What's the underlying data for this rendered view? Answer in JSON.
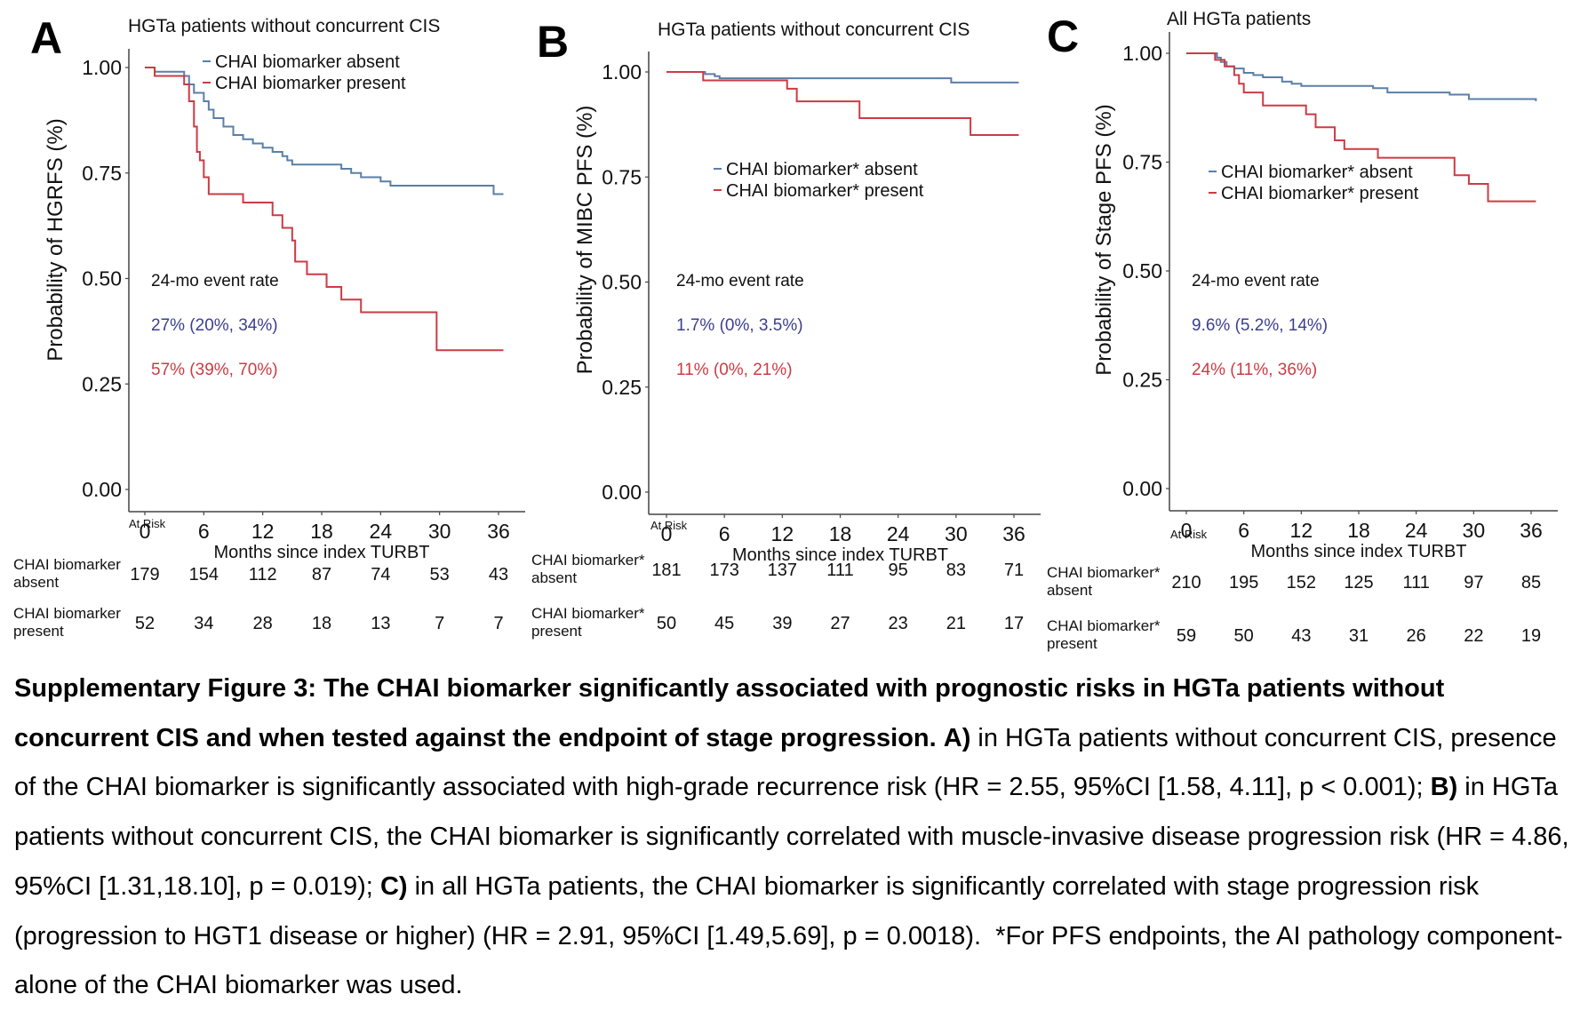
{
  "chart_data": [
    {
      "type": "line",
      "panel_letter": "A",
      "title": "HGTa patients without concurrent CIS",
      "xlabel": "Months since index TURBT",
      "ylabel": "Probability of HGRFS (%)",
      "xlim": [
        0,
        36
      ],
      "ylim": [
        0,
        1
      ],
      "x_ticks": [
        "0",
        "6",
        "12",
        "18",
        "24",
        "30",
        "36"
      ],
      "y_ticks": [
        "0.00",
        "0.25",
        "0.50",
        "0.75",
        "1.00"
      ],
      "grid": false,
      "legend_position": "top-center",
      "legend": [
        "CHAI biomarker absent",
        "CHAI biomarker present"
      ],
      "series": [
        {
          "name": "CHAI biomarker absent",
          "color": "#5a7fa6",
          "steps": [
            [
              0,
              1.0
            ],
            [
              1,
              0.99
            ],
            [
              4,
              0.98
            ],
            [
              4.5,
              0.96
            ],
            [
              5,
              0.94
            ],
            [
              6,
              0.92
            ],
            [
              6.5,
              0.9
            ],
            [
              7,
              0.88
            ],
            [
              8,
              0.86
            ],
            [
              9,
              0.84
            ],
            [
              10,
              0.83
            ],
            [
              11,
              0.82
            ],
            [
              12,
              0.81
            ],
            [
              13,
              0.8
            ],
            [
              14,
              0.79
            ],
            [
              14.5,
              0.78
            ],
            [
              15,
              0.77
            ],
            [
              20,
              0.76
            ],
            [
              21,
              0.75
            ],
            [
              22,
              0.74
            ],
            [
              24,
              0.73
            ],
            [
              25,
              0.72
            ],
            [
              35.5,
              0.7
            ],
            [
              36.5,
              0.7
            ]
          ]
        },
        {
          "name": "CHAI biomarker present",
          "color": "#cc3b44",
          "steps": [
            [
              0,
              1.0
            ],
            [
              1,
              0.98
            ],
            [
              4,
              0.96
            ],
            [
              4.5,
              0.92
            ],
            [
              5,
              0.86
            ],
            [
              5.3,
              0.8
            ],
            [
              5.6,
              0.78
            ],
            [
              6,
              0.74
            ],
            [
              6.5,
              0.7
            ],
            [
              10,
              0.68
            ],
            [
              13,
              0.65
            ],
            [
              14,
              0.62
            ],
            [
              15,
              0.59
            ],
            [
              15.3,
              0.54
            ],
            [
              16.5,
              0.51
            ],
            [
              18.5,
              0.48
            ],
            [
              20,
              0.45
            ],
            [
              22,
              0.42
            ],
            [
              29.7,
              0.33
            ],
            [
              36.5,
              0.33
            ]
          ]
        }
      ],
      "annotation_title": "24-mo event rate",
      "annotations": [
        {
          "series": "CHAI biomarker absent",
          "text": "27% (20%, 34%)",
          "color": "#3b3f8f"
        },
        {
          "series": "CHAI biomarker present",
          "text": "57% (39%, 70%)",
          "color": "#cc3b44"
        }
      ],
      "at_risk": {
        "label": "At Risk",
        "times": [
          0,
          6,
          12,
          18,
          24,
          30,
          36
        ],
        "rows": [
          {
            "label_line1": "CHAI biomarker",
            "label_line2": "absent",
            "values": [
              "179",
              "154",
              "112",
              "87",
              "74",
              "53",
              "43"
            ]
          },
          {
            "label_line1": "CHAI biomarker",
            "label_line2": "present",
            "values": [
              "52",
              "34",
              "28",
              "18",
              "13",
              "7",
              "7"
            ]
          }
        ]
      }
    },
    {
      "type": "line",
      "panel_letter": "B",
      "title": "HGTa patients without concurrent CIS",
      "xlabel": "Months since index TURBT",
      "ylabel": "Probability of MIBC PFS (%)",
      "xlim": [
        0,
        36
      ],
      "ylim": [
        0,
        1
      ],
      "x_ticks": [
        "0",
        "6",
        "12",
        "18",
        "24",
        "30",
        "36"
      ],
      "y_ticks": [
        "0.00",
        "0.25",
        "0.50",
        "0.75",
        "1.00"
      ],
      "grid": false,
      "legend_position": "center",
      "legend": [
        "CHAI biomarker* absent",
        "CHAI biomarker* present"
      ],
      "series": [
        {
          "name": "CHAI biomarker* absent",
          "color": "#5a7fa6",
          "steps": [
            [
              0,
              1.0
            ],
            [
              4,
              0.995
            ],
            [
              5,
              0.99
            ],
            [
              5.5,
              0.985
            ],
            [
              29.5,
              0.975
            ],
            [
              36.5,
              0.975
            ]
          ]
        },
        {
          "name": "CHAI biomarker* present",
          "color": "#cc3b44",
          "steps": [
            [
              0,
              1.0
            ],
            [
              3.8,
              0.98
            ],
            [
              12.5,
              0.96
            ],
            [
              13.5,
              0.93
            ],
            [
              20,
              0.89
            ],
            [
              31.5,
              0.85
            ],
            [
              36.5,
              0.85
            ]
          ]
        }
      ],
      "annotation_title": "24-mo event rate",
      "annotations": [
        {
          "series": "CHAI biomarker* absent",
          "text": "1.7% (0%, 3.5%)",
          "color": "#3b3f8f"
        },
        {
          "series": "CHAI biomarker* present",
          "text": "11% (0%, 21%)",
          "color": "#cc3b44"
        }
      ],
      "at_risk": {
        "label": "At Risk",
        "times": [
          0,
          6,
          12,
          18,
          24,
          30,
          36
        ],
        "rows": [
          {
            "label_line1": "CHAI biomarker*",
            "label_line2": "absent",
            "values": [
              "181",
              "173",
              "137",
              "111",
              "95",
              "83",
              "71"
            ]
          },
          {
            "label_line1": "CHAI biomarker*",
            "label_line2": "present",
            "values": [
              "50",
              "45",
              "39",
              "27",
              "23",
              "21",
              "17"
            ]
          }
        ]
      }
    },
    {
      "type": "line",
      "panel_letter": "C",
      "title": "All HGTa patients",
      "xlabel": "Months since index TURBT",
      "ylabel": "Probability of Stage PFS (%)",
      "xlim": [
        0,
        36
      ],
      "ylim": [
        0,
        1
      ],
      "x_ticks": [
        "0",
        "6",
        "12",
        "18",
        "24",
        "30",
        "36"
      ],
      "y_ticks": [
        "0.00",
        "0.25",
        "0.50",
        "0.75",
        "1.00"
      ],
      "grid": false,
      "legend_position": "center",
      "legend": [
        "CHAI biomarker* absent",
        "CHAI biomarker* present"
      ],
      "series": [
        {
          "name": "CHAI biomarker* absent",
          "color": "#5a7fa6",
          "steps": [
            [
              0,
              1.0
            ],
            [
              3.2,
              0.99
            ],
            [
              3.6,
              0.98
            ],
            [
              4.2,
              0.97
            ],
            [
              5,
              0.965
            ],
            [
              6,
              0.955
            ],
            [
              7,
              0.95
            ],
            [
              8,
              0.945
            ],
            [
              10,
              0.935
            ],
            [
              11,
              0.93
            ],
            [
              12,
              0.925
            ],
            [
              19.5,
              0.92
            ],
            [
              21,
              0.91
            ],
            [
              27.5,
              0.905
            ],
            [
              29.5,
              0.895
            ],
            [
              36.5,
              0.89
            ]
          ]
        },
        {
          "name": "CHAI biomarker* present",
          "color": "#cc3b44",
          "steps": [
            [
              0,
              1.0
            ],
            [
              3,
              0.985
            ],
            [
              4,
              0.97
            ],
            [
              5,
              0.95
            ],
            [
              5.5,
              0.93
            ],
            [
              6,
              0.91
            ],
            [
              8,
              0.88
            ],
            [
              12.5,
              0.86
            ],
            [
              13.5,
              0.83
            ],
            [
              15.5,
              0.8
            ],
            [
              16.5,
              0.78
            ],
            [
              20,
              0.76
            ],
            [
              28,
              0.72
            ],
            [
              29.5,
              0.7
            ],
            [
              31.5,
              0.66
            ],
            [
              36.5,
              0.66
            ]
          ]
        }
      ],
      "annotation_title": "24-mo event rate",
      "annotations": [
        {
          "series": "CHAI biomarker* absent",
          "text": "9.6% (5.2%, 14%)",
          "color": "#3b3f8f"
        },
        {
          "series": "CHAI biomarker* present",
          "text": "24% (11%, 36%)",
          "color": "#cc3b44"
        }
      ],
      "at_risk": {
        "label": "At Risk",
        "times": [
          0,
          6,
          12,
          18,
          24,
          30,
          36
        ],
        "rows": [
          {
            "label_line1": "CHAI biomarker*",
            "label_line2": "absent",
            "values": [
              "210",
              "195",
              "152",
              "125",
              "111",
              "97",
              "85"
            ]
          },
          {
            "label_line1": "CHAI biomarker*",
            "label_line2": "present",
            "values": [
              "59",
              "50",
              "43",
              "31",
              "26",
              "22",
              "19"
            ]
          }
        ]
      }
    }
  ],
  "caption": {
    "bold_lead": "Supplementary Figure 3: The CHAI biomarker significantly associated with prognostic risks in HGTa patients without concurrent CIS and when tested against the endpoint of stage progression.",
    "label_a": "A)",
    "text_a": " in HGTa patients without concurrent CIS, presence of the CHAI biomarker is significantly associated with high-grade recurrence risk (HR = 2.55, 95%CI [1.58, 4.11], p < 0.001);",
    "label_b": "B)",
    "text_b": " in HGTa patients without concurrent CIS, the CHAI biomarker is significantly correlated with muscle-invasive disease progression risk (HR = 4.86, 95%CI [1.31,18.10], p = 0.019);",
    "label_c": "C)",
    "text_c": " in all HGTa patients, the CHAI biomarker is significantly correlated with stage progression risk (progression to HGT1 disease or higher) (HR = 2.91, 95%CI [1.49,5.69], p = 0.0018).",
    "footnote": "  *For PFS endpoints, the AI pathology component-alone of the CHAI biomarker was used."
  }
}
